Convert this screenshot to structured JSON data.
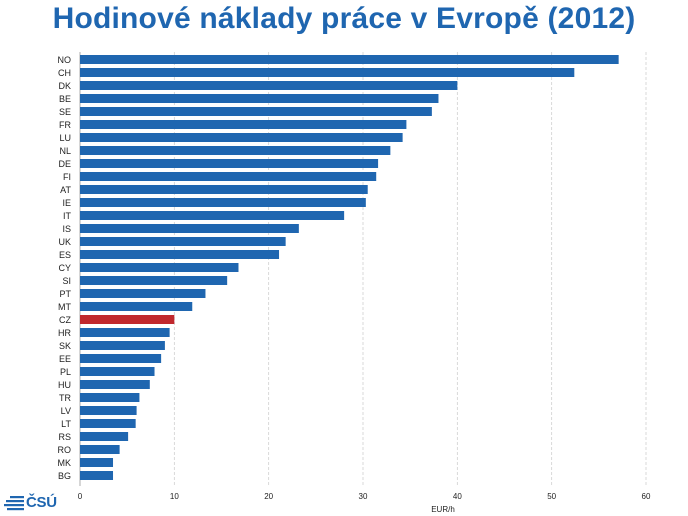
{
  "title": "Hodinové náklady práce v Evropě (2012)",
  "logo": {
    "text": "ČSÚ",
    "icon": "csu-logo-lines-icon"
  },
  "colors": {
    "bar": "#1f66b0",
    "highlight": "#c0282d",
    "grid": "#cfcfcf",
    "title": "#1f66b0"
  },
  "chart_data": {
    "type": "bar",
    "orientation": "horizontal",
    "categories": [
      "NO",
      "CH",
      "DK",
      "BE",
      "SE",
      "FR",
      "LU",
      "NL",
      "DE",
      "FI",
      "AT",
      "IE",
      "IT",
      "IS",
      "UK",
      "ES",
      "CY",
      "SI",
      "PT",
      "MT",
      "CZ",
      "HR",
      "SK",
      "EE",
      "PL",
      "HU",
      "TR",
      "LV",
      "LT",
      "RS",
      "RO",
      "MK",
      "BG"
    ],
    "values": [
      57.1,
      52.4,
      40.0,
      38.0,
      37.3,
      34.6,
      34.2,
      32.9,
      31.6,
      31.4,
      30.5,
      30.3,
      28.0,
      23.2,
      21.8,
      21.1,
      16.8,
      15.6,
      13.3,
      11.9,
      10.0,
      9.5,
      9.0,
      8.6,
      7.9,
      7.4,
      6.3,
      6.0,
      5.9,
      5.1,
      4.2,
      3.5,
      3.5
    ],
    "highlight": "CZ",
    "xlabel": "EUR/h",
    "xlim": [
      0,
      60
    ],
    "xticks": [
      0,
      10,
      20,
      30,
      40,
      50,
      60
    ],
    "grid": true
  }
}
